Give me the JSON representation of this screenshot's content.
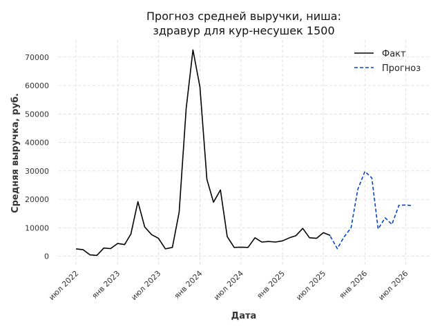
{
  "chart_data": {
    "type": "line",
    "title_lines": [
      "Прогноз средней выручки, ниша:",
      "здравур для кур-несушек 1500"
    ],
    "xlabel": "Дата",
    "ylabel": "Средняя выручка, руб.",
    "ylim": [
      -3000,
      76000
    ],
    "xlim": [
      "2022-04-15",
      "2026-10-15"
    ],
    "yticks": [
      0,
      10000,
      20000,
      30000,
      40000,
      50000,
      60000,
      70000
    ],
    "xticks": [
      {
        "date": "2022-07-01",
        "label": "июл 2022"
      },
      {
        "date": "2023-01-01",
        "label": "янв 2023"
      },
      {
        "date": "2023-07-01",
        "label": "июл 2023"
      },
      {
        "date": "2024-01-01",
        "label": "янв 2024"
      },
      {
        "date": "2024-07-01",
        "label": "июл 2024"
      },
      {
        "date": "2025-01-01",
        "label": "янв 2025"
      },
      {
        "date": "2025-07-01",
        "label": "июл 2025"
      },
      {
        "date": "2026-01-01",
        "label": "янв 2026"
      },
      {
        "date": "2026-07-01",
        "label": "июл 2026"
      }
    ],
    "grid": true,
    "legend_position": "top-right",
    "series": [
      {
        "name": "Факт",
        "color": "#000000",
        "style": "solid",
        "points": [
          [
            "2022-07-01",
            2600
          ],
          [
            "2022-08-01",
            2300
          ],
          [
            "2022-09-01",
            500
          ],
          [
            "2022-10-01",
            300
          ],
          [
            "2022-11-01",
            2900
          ],
          [
            "2022-12-01",
            2700
          ],
          [
            "2023-01-01",
            4500
          ],
          [
            "2023-02-01",
            4100
          ],
          [
            "2023-03-01",
            7800
          ],
          [
            "2023-04-01",
            19200
          ],
          [
            "2023-05-01",
            10300
          ],
          [
            "2023-06-01",
            7600
          ],
          [
            "2023-07-01",
            6300
          ],
          [
            "2023-08-01",
            2600
          ],
          [
            "2023-09-01",
            3100
          ],
          [
            "2023-10-01",
            15500
          ],
          [
            "2023-11-01",
            52000
          ],
          [
            "2023-12-01",
            72500
          ],
          [
            "2024-01-01",
            59500
          ],
          [
            "2024-02-01",
            27000
          ],
          [
            "2024-03-01",
            19000
          ],
          [
            "2024-04-01",
            23300
          ],
          [
            "2024-05-01",
            6900
          ],
          [
            "2024-06-01",
            3100
          ],
          [
            "2024-07-01",
            3200
          ],
          [
            "2024-08-01",
            3100
          ],
          [
            "2024-09-01",
            6500
          ],
          [
            "2024-10-01",
            5000
          ],
          [
            "2024-11-01",
            5200
          ],
          [
            "2024-12-01",
            5000
          ],
          [
            "2025-01-01",
            5400
          ],
          [
            "2025-02-01",
            6500
          ],
          [
            "2025-03-01",
            7200
          ],
          [
            "2025-04-01",
            9800
          ],
          [
            "2025-05-01",
            6500
          ],
          [
            "2025-06-01",
            6300
          ],
          [
            "2025-07-01",
            8300
          ],
          [
            "2025-08-01",
            7300
          ]
        ]
      },
      {
        "name": "Прогноз",
        "color": "#0044cc",
        "style": "dashed",
        "points": [
          [
            "2025-08-01",
            7000
          ],
          [
            "2025-09-01",
            2700
          ],
          [
            "2025-10-01",
            6800
          ],
          [
            "2025-11-01",
            10000
          ],
          [
            "2025-12-01",
            23500
          ],
          [
            "2026-01-01",
            29800
          ],
          [
            "2026-02-01",
            27500
          ],
          [
            "2026-03-01",
            9600
          ],
          [
            "2026-04-01",
            13500
          ],
          [
            "2026-05-01",
            11200
          ],
          [
            "2026-06-01",
            17900
          ],
          [
            "2026-07-01",
            18000
          ],
          [
            "2026-08-01",
            17800
          ]
        ]
      }
    ]
  }
}
